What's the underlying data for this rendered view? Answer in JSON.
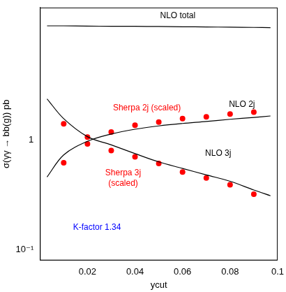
{
  "chart_data": {
    "type": "line",
    "x_label": "ycut",
    "y_label": "σ(γγ → bb(g)) pb",
    "log": "y",
    "grid": false,
    "xlim": [
      0,
      0.1
    ],
    "xticks": [
      0.02,
      0.04,
      0.06,
      0.08,
      0.1
    ],
    "ylim": [
      0.08,
      16
    ],
    "yticks": [
      {
        "value": 0.1,
        "label": "10⁻¹"
      },
      1
    ],
    "series": [
      {
        "name": "NLO total",
        "type": "line",
        "color": "#000000",
        "line_style": "solid",
        "x": [
          0.003,
          0.01,
          0.02,
          0.03,
          0.04,
          0.05,
          0.06,
          0.07,
          0.08,
          0.09,
          0.097
        ],
        "values": [
          10.9,
          10.9,
          10.85,
          10.8,
          10.8,
          10.75,
          10.7,
          10.65,
          10.6,
          10.55,
          10.5
        ]
      },
      {
        "name": "NLO 2j",
        "type": "line",
        "color": "#000000",
        "line_style": "solid",
        "x": [
          0.003,
          0.01,
          0.02,
          0.03,
          0.04,
          0.05,
          0.06,
          0.07,
          0.08,
          0.09,
          0.097
        ],
        "values": [
          0.46,
          0.73,
          0.97,
          1.13,
          1.25,
          1.34,
          1.41,
          1.47,
          1.54,
          1.6,
          1.65
        ]
      },
      {
        "name": "NLO 3j",
        "type": "line",
        "color": "#000000",
        "line_style": "solid",
        "x": [
          0.003,
          0.01,
          0.02,
          0.03,
          0.04,
          0.05,
          0.06,
          0.07,
          0.08,
          0.09,
          0.097
        ],
        "values": [
          2.36,
          1.56,
          1.07,
          0.9,
          0.75,
          0.63,
          0.55,
          0.48,
          0.42,
          0.35,
          0.31
        ]
      },
      {
        "name": "Sherpa 2j (scaled)",
        "type": "scatter",
        "color": "#ff0000",
        "marker": "circle",
        "x": [
          0.01,
          0.02,
          0.03,
          0.04,
          0.05,
          0.06,
          0.07,
          0.08,
          0.09
        ],
        "values": [
          1.4,
          1.06,
          1.18,
          1.36,
          1.45,
          1.56,
          1.62,
          1.72,
          1.79
        ]
      },
      {
        "name": "Sherpa 3j (scaled)",
        "type": "scatter",
        "color": "#ff0000",
        "marker": "circle",
        "x": [
          0.01,
          0.02,
          0.03,
          0.04,
          0.05,
          0.06,
          0.07,
          0.08,
          0.09
        ],
        "values": [
          0.62,
          0.92,
          0.8,
          0.7,
          0.61,
          0.51,
          0.45,
          0.39,
          0.32
        ]
      }
    ],
    "annotations": [
      {
        "text": [
          "NLO total"
        ],
        "color": "#000000"
      },
      {
        "text": [
          "Sherpa 2j (scaled)"
        ],
        "color": "#ff0000"
      },
      {
        "text": [
          "NLO 2j"
        ],
        "color": "#000000"
      },
      {
        "text": [
          "Sherpa 3j",
          "(scaled)"
        ],
        "color": "#ff0000"
      },
      {
        "text": [
          "NLO 3j"
        ],
        "color": "#000000"
      },
      {
        "text": [
          "K-factor 1.34"
        ],
        "color": "#0000ff"
      }
    ]
  }
}
